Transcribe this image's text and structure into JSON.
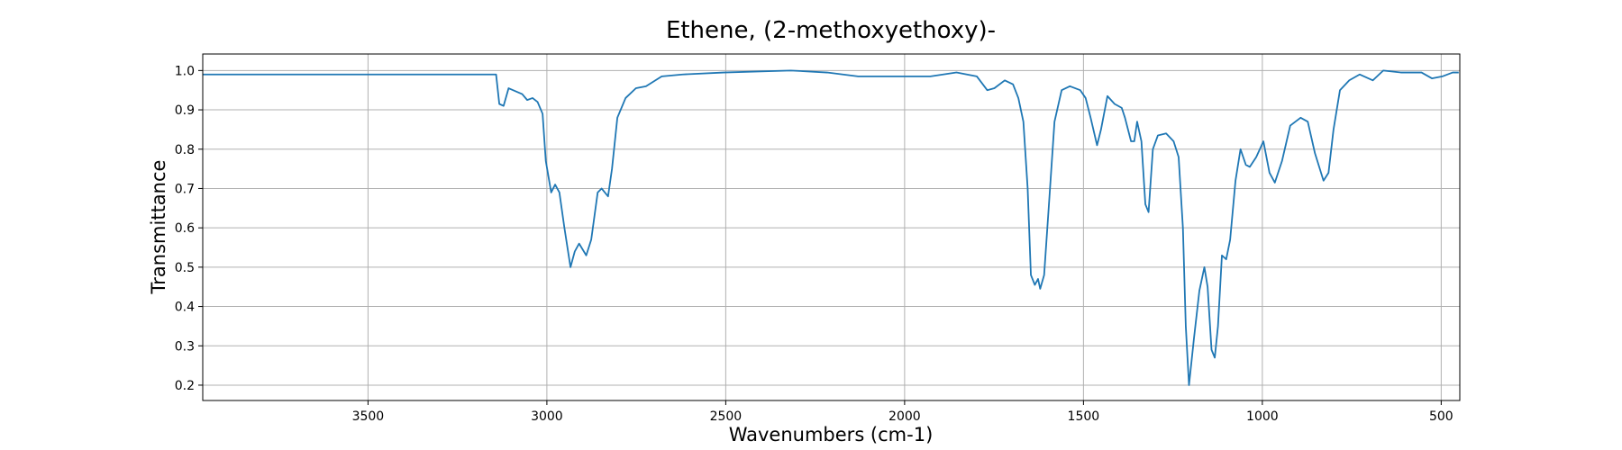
{
  "chart_data": {
    "type": "line",
    "title": "Ethene, (2-methoxyethoxy)-",
    "xlabel": "Wavenumbers (cm-1)",
    "ylabel": "Transmittance",
    "x": [
      3962,
      3142,
      3133,
      3121,
      3107,
      3069,
      3055,
      3040,
      3026,
      3012,
      3003,
      2988,
      2977,
      2965,
      2951,
      2934,
      2922,
      2910,
      2890,
      2876,
      2858,
      2847,
      2829,
      2818,
      2803,
      2780,
      2751,
      2723,
      2679,
      2621,
      2506,
      2318,
      2217,
      2130,
      1928,
      1855,
      1798,
      1769,
      1749,
      1720,
      1697,
      1682,
      1668,
      1656,
      1647,
      1636,
      1627,
      1621,
      1610,
      1595,
      1581,
      1561,
      1538,
      1509,
      1494,
      1480,
      1462,
      1451,
      1433,
      1413,
      1393,
      1384,
      1367,
      1358,
      1350,
      1338,
      1327,
      1318,
      1306,
      1292,
      1269,
      1248,
      1234,
      1222,
      1214,
      1205,
      1191,
      1176,
      1162,
      1153,
      1142,
      1133,
      1124,
      1113,
      1101,
      1090,
      1075,
      1061,
      1046,
      1035,
      1017,
      997,
      980,
      965,
      945,
      922,
      893,
      873,
      853,
      829,
      815,
      801,
      783,
      757,
      728,
      691,
      662,
      613,
      555,
      526,
      497,
      468,
      451
    ],
    "series": [
      {
        "color": "#1f77b4",
        "values": [
          0.99,
          0.99,
          0.915,
          0.91,
          0.955,
          0.94,
          0.925,
          0.93,
          0.92,
          0.89,
          0.77,
          0.69,
          0.71,
          0.69,
          0.6,
          0.5,
          0.54,
          0.56,
          0.53,
          0.57,
          0.69,
          0.7,
          0.68,
          0.75,
          0.88,
          0.93,
          0.955,
          0.96,
          0.985,
          0.99,
          0.995,
          1.0,
          0.995,
          0.985,
          0.985,
          0.995,
          0.985,
          0.95,
          0.955,
          0.975,
          0.965,
          0.93,
          0.87,
          0.7,
          0.48,
          0.455,
          0.47,
          0.445,
          0.48,
          0.68,
          0.87,
          0.95,
          0.96,
          0.95,
          0.93,
          0.88,
          0.81,
          0.85,
          0.935,
          0.915,
          0.905,
          0.88,
          0.82,
          0.82,
          0.87,
          0.82,
          0.66,
          0.64,
          0.8,
          0.835,
          0.84,
          0.82,
          0.78,
          0.6,
          0.35,
          0.2,
          0.32,
          0.44,
          0.5,
          0.45,
          0.29,
          0.27,
          0.35,
          0.53,
          0.52,
          0.57,
          0.72,
          0.8,
          0.76,
          0.755,
          0.78,
          0.82,
          0.74,
          0.715,
          0.77,
          0.86,
          0.88,
          0.87,
          0.79,
          0.72,
          0.74,
          0.85,
          0.95,
          0.975,
          0.99,
          0.975,
          1.0,
          0.995,
          0.995,
          0.98,
          0.985,
          0.995,
          0.995
        ]
      }
    ],
    "xlim": [
      3962,
      448
    ],
    "ylim": [
      0.161,
      1.042
    ],
    "xticks": [
      3500,
      3000,
      2500,
      2000,
      1500,
      1000,
      500
    ],
    "yticks": [
      0.2,
      0.3,
      0.4,
      0.5,
      0.6,
      0.7,
      0.8,
      0.9,
      {
        "value": 1,
        "label": "1.0"
      }
    ],
    "grid": true
  }
}
